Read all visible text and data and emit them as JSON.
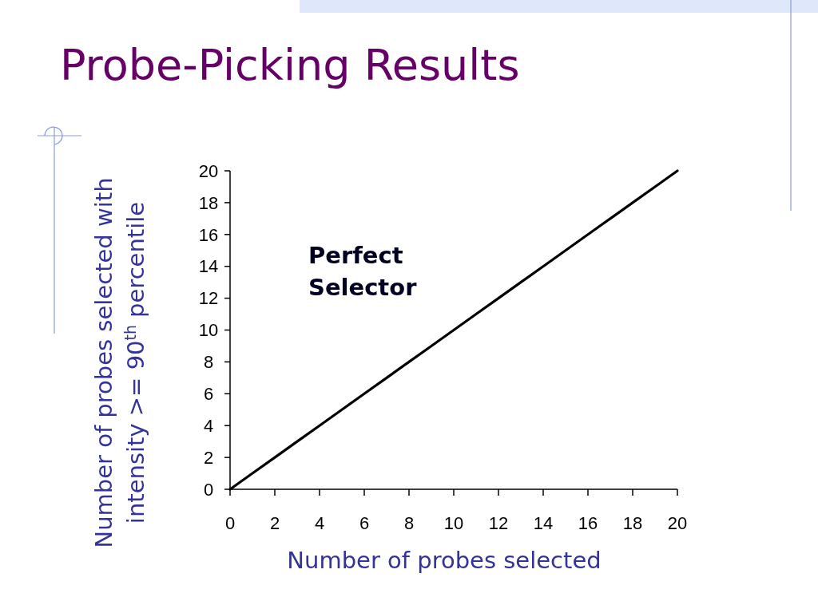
{
  "chart_data": {
    "type": "line",
    "title": "Probe-Picking Results",
    "xlabel": "Number of probes selected",
    "ylabel": "Number of probes selected with\nintensity >= 90$^{th}$ percentile",
    "x": [
      0,
      1,
      2,
      3,
      4,
      5,
      6,
      7,
      8,
      9,
      10,
      11,
      12,
      13,
      14,
      15,
      16,
      17,
      18,
      19,
      20
    ],
    "series": [
      {
        "name": "Perfect Selector",
        "color": "#000000",
        "values": [
          0,
          1,
          2,
          3,
          4,
          5,
          6,
          7,
          8,
          9,
          10,
          11,
          12,
          13,
          14,
          15,
          16,
          17,
          18,
          19,
          20
        ]
      }
    ],
    "xlim": [
      0,
      20
    ],
    "ylim": [
      0,
      20
    ],
    "xticks": [
      0,
      2,
      4,
      6,
      8,
      10,
      12,
      14,
      16,
      18,
      20
    ],
    "yticks": [
      0,
      2,
      4,
      6,
      8,
      10,
      12,
      14,
      16,
      18,
      20
    ]
  }
}
